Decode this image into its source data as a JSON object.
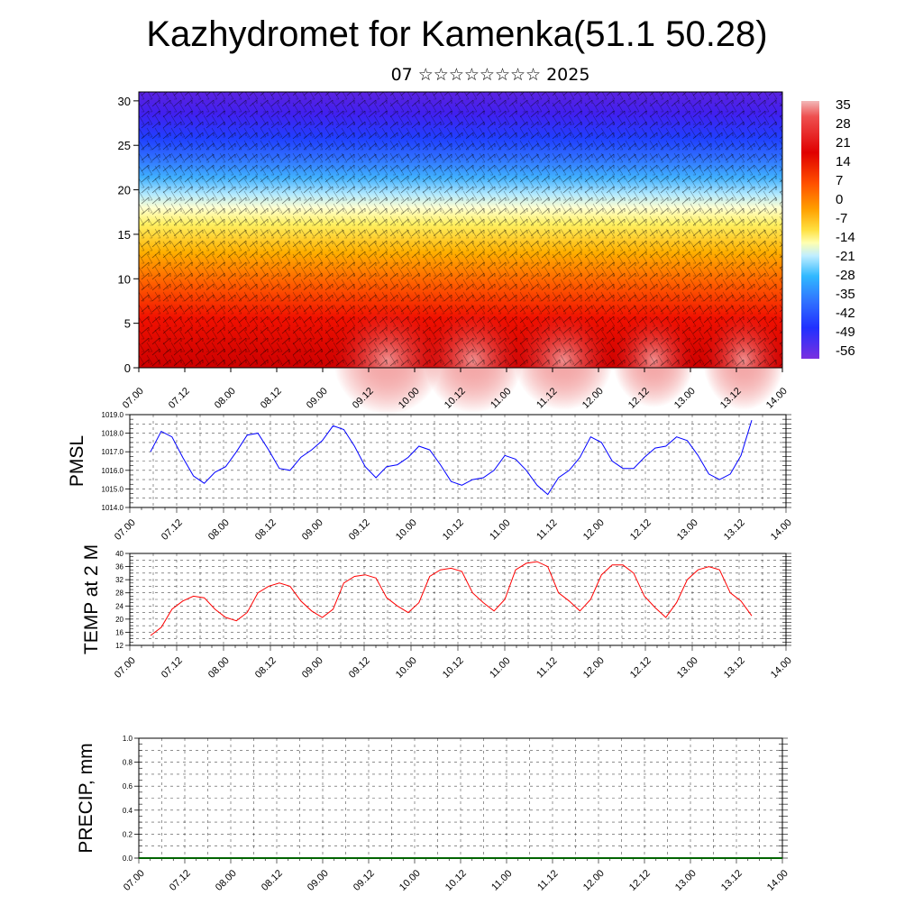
{
  "header": {
    "title": "Kazhydromet for Kamenka(51.1 50.28)",
    "subtitle": "07 ☆☆☆☆☆☆☆☆ 2025"
  },
  "x_tick_labels": [
    "07.00",
    "07.12",
    "08.00",
    "08.12",
    "09.00",
    "09.12",
    "10.00",
    "10.12",
    "11.00",
    "11.12",
    "12.00",
    "12.12",
    "13.00",
    "13.12",
    "14.00"
  ],
  "colors": {
    "pmsl_line": "#0000ff",
    "temp_line": "#ff0000",
    "precip_line": "#006400"
  },
  "chart_data": [
    {
      "type": "heatmap",
      "title": "",
      "xlabel": "",
      "ylabel": "",
      "x": [
        "07.00",
        "07.12",
        "08.00",
        "08.12",
        "09.00",
        "09.12",
        "10.00",
        "10.12",
        "11.00",
        "11.12",
        "12.00",
        "12.12",
        "13.00",
        "13.12",
        "14.00"
      ],
      "y_ticks": [
        0,
        5,
        10,
        15,
        20,
        25,
        30
      ],
      "ylim": [
        0,
        31
      ],
      "colorbar_labels": [
        "35",
        "28",
        "21",
        "14",
        "7",
        "0",
        "-7",
        "-14",
        "-21",
        "-28",
        "-35",
        "-42",
        "-49",
        "-56"
      ],
      "colorbar_range": [
        -63,
        42
      ],
      "wind_barbs": true
    },
    {
      "type": "line",
      "ylabel": "PMSL",
      "y_ticks": [
        "1014.0",
        "1015.0",
        "1016.0",
        "1017.0",
        "1018.0",
        "1019.0"
      ],
      "ylim": [
        1014,
        1019
      ],
      "grid": true,
      "x_step_hours": 3,
      "series": [
        {
          "values": [
            1017.0,
            1018.1,
            1017.8,
            1016.7,
            1015.7,
            1015.3,
            1015.9,
            1016.2,
            1017.0,
            1017.9,
            1018.0,
            1017.1,
            1016.1,
            1016.0,
            1016.7,
            1017.1,
            1017.6,
            1018.4,
            1018.2,
            1017.3,
            1016.2,
            1015.6,
            1016.2,
            1016.3,
            1016.7,
            1017.3,
            1017.1,
            1016.3,
            1015.4,
            1015.2,
            1015.5,
            1015.6,
            1016.0,
            1016.8,
            1016.6,
            1016.0,
            1015.2,
            1014.7,
            1015.6,
            1016.0,
            1016.7,
            1017.8,
            1017.5,
            1016.5,
            1016.1,
            1016.1,
            1016.7,
            1017.2,
            1017.3,
            1017.8,
            1017.6,
            1016.8,
            1015.8,
            1015.5,
            1015.8,
            1016.8,
            1018.7
          ]
        }
      ]
    },
    {
      "type": "line",
      "ylabel": "TEMP at 2 M",
      "y_ticks": [
        "12",
        "16",
        "20",
        "24",
        "28",
        "32",
        "36",
        "40"
      ],
      "ylim": [
        12,
        40
      ],
      "grid": true,
      "x_step_hours": 3,
      "series": [
        {
          "values": [
            15,
            17.5,
            23,
            25.5,
            27,
            26.5,
            23,
            20.5,
            19.5,
            22,
            28,
            30,
            31,
            30,
            25.5,
            22.5,
            20.5,
            23,
            31,
            33,
            33.5,
            32.5,
            26.5,
            24,
            22,
            25,
            33,
            35,
            35.5,
            34.5,
            28,
            25,
            22.5,
            26,
            35,
            37,
            37.5,
            36,
            28,
            25.5,
            22.5,
            26,
            33.5,
            36.5,
            36.5,
            34,
            27,
            23.5,
            20.5,
            25,
            32,
            35,
            36,
            35,
            28,
            25.5,
            21
          ]
        }
      ]
    },
    {
      "type": "line",
      "ylabel": "PRECIP, mm",
      "y_ticks": [
        "0.0",
        "0.2",
        "0.4",
        "0.6",
        "0.8",
        "1.0"
      ],
      "ylim": [
        0,
        1
      ],
      "grid": true,
      "x_step_hours": 3,
      "series": [
        {
          "values": [
            0,
            0,
            0,
            0,
            0,
            0,
            0,
            0,
            0,
            0,
            0,
            0,
            0,
            0,
            0,
            0,
            0,
            0,
            0,
            0,
            0,
            0,
            0,
            0,
            0,
            0,
            0,
            0,
            0,
            0,
            0,
            0,
            0,
            0,
            0,
            0,
            0,
            0,
            0,
            0,
            0,
            0,
            0,
            0,
            0,
            0,
            0,
            0,
            0,
            0,
            0,
            0,
            0,
            0,
            0,
            0,
            0
          ]
        }
      ]
    }
  ]
}
